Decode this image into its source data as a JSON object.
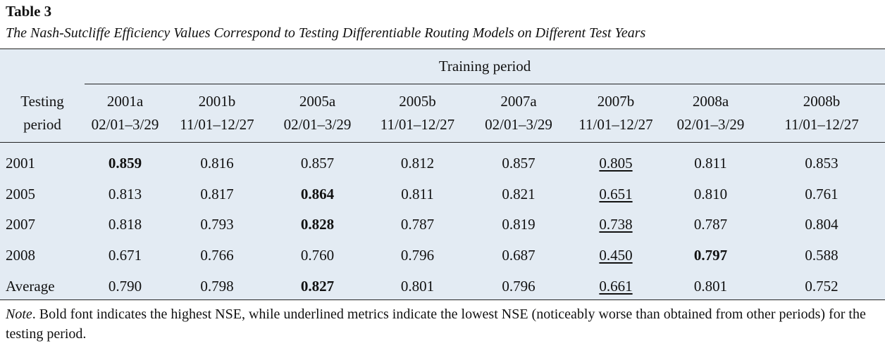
{
  "label": "Table 3",
  "caption": "The Nash-Sutcliffe Efficiency Values Correspond to Testing Differentiable Routing Models on Different Test Years",
  "spanner": "Training period",
  "stub_head": [
    "Testing",
    "period"
  ],
  "columns": [
    {
      "name": "2001a",
      "range": "02/01–3/29"
    },
    {
      "name": "2001b",
      "range": "11/01–12/27"
    },
    {
      "name": "2005a",
      "range": "02/01–3/29"
    },
    {
      "name": "2005b",
      "range": "11/01–12/27"
    },
    {
      "name": "2007a",
      "range": "02/01–3/29"
    },
    {
      "name": "2007b",
      "range": "11/01–12/27"
    },
    {
      "name": "2008a",
      "range": "02/01–3/29"
    },
    {
      "name": "2008b",
      "range": "11/01–12/27"
    }
  ],
  "rows": [
    {
      "label": "2001",
      "values": [
        "0.859",
        "0.816",
        "0.857",
        "0.812",
        "0.857",
        "0.805",
        "0.811",
        "0.853"
      ],
      "bold": [
        0
      ],
      "underline": [
        5
      ]
    },
    {
      "label": "2005",
      "values": [
        "0.813",
        "0.817",
        "0.864",
        "0.811",
        "0.821",
        "0.651",
        "0.810",
        "0.761"
      ],
      "bold": [
        2
      ],
      "underline": [
        5
      ]
    },
    {
      "label": "2007",
      "values": [
        "0.818",
        "0.793",
        "0.828",
        "0.787",
        "0.819",
        "0.738",
        "0.787",
        "0.804"
      ],
      "bold": [
        2
      ],
      "underline": [
        5
      ]
    },
    {
      "label": "2008",
      "values": [
        "0.671",
        "0.766",
        "0.760",
        "0.796",
        "0.687",
        "0.450",
        "0.797",
        "0.588"
      ],
      "bold": [
        6
      ],
      "underline": [
        5
      ]
    },
    {
      "label": "Average",
      "values": [
        "0.790",
        "0.798",
        "0.827",
        "0.801",
        "0.796",
        "0.661",
        "0.801",
        "0.752"
      ],
      "bold": [
        2
      ],
      "underline": [
        5
      ]
    }
  ],
  "note": {
    "lead": "Note",
    "text": ". Bold font indicates the highest NSE, while underlined metrics indicate the lowest NSE (noticeably worse than obtained from other periods) for the testing period."
  }
}
